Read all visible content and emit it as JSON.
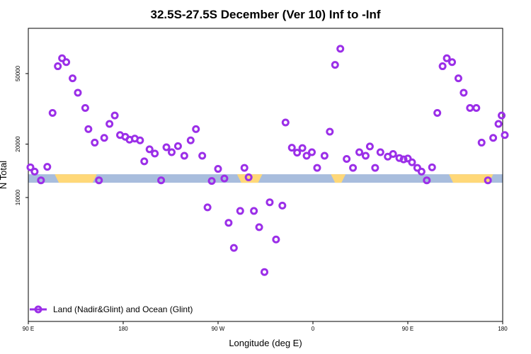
{
  "chart_data": {
    "type": "scatter",
    "title": "32.5S-27.5S December (Ver 10)   Inf to -Inf",
    "xlabel": "Longitude (deg E)",
    "ylabel": "N Total",
    "x_ticks": [
      {
        "value": 90,
        "label": "90 E"
      },
      {
        "value": 180,
        "label": "180"
      },
      {
        "value": 270,
        "label": "90 W"
      },
      {
        "value": 360,
        "label": "0"
      },
      {
        "value": 450,
        "label": "90 E"
      },
      {
        "value": 540,
        "label": "180"
      }
    ],
    "y_ticks": [
      {
        "value": 10000,
        "label": "10000"
      },
      {
        "value": 20000,
        "label": "20000"
      },
      {
        "value": 50000,
        "label": "50000"
      }
    ],
    "xlim": [
      90,
      540
    ],
    "ylim_log": [
      2000,
      90000
    ],
    "colors": {
      "series": "#9b2fe8",
      "ocean_band": "#a8bddd",
      "land_band": "#ffd878"
    },
    "legend": {
      "label": "Land (Nadir&Glint) and Ocean (Glint)",
      "position": "bottom-left"
    },
    "band": {
      "y_value": 12800,
      "land_ranges": [
        [
          115,
          155
        ],
        [
          288,
          312
        ],
        [
          377,
          391
        ],
        [
          489,
          531
        ]
      ]
    },
    "series": [
      {
        "name": "Land (Nadir&Glint) and Ocean (Glint)",
        "points": [
          [
            92,
            14800
          ],
          [
            96,
            14000
          ],
          [
            102,
            12500
          ],
          [
            108,
            14900
          ],
          [
            113,
            30000
          ],
          [
            118,
            55000
          ],
          [
            122,
            61000
          ],
          [
            126,
            58000
          ],
          [
            132,
            47000
          ],
          [
            137,
            39000
          ],
          [
            144,
            32000
          ],
          [
            147,
            24300
          ],
          [
            153,
            20400
          ],
          [
            157,
            12500
          ],
          [
            162,
            21700
          ],
          [
            167,
            26000
          ],
          [
            172,
            29000
          ],
          [
            177,
            22500
          ],
          [
            182,
            22000
          ],
          [
            186,
            21200
          ],
          [
            191,
            21500
          ],
          [
            196,
            21000
          ],
          [
            200,
            16000
          ],
          [
            205,
            18700
          ],
          [
            210,
            17700
          ],
          [
            216,
            12500
          ],
          [
            221,
            19200
          ],
          [
            226,
            18000
          ],
          [
            232,
            19500
          ],
          [
            238,
            17200
          ],
          [
            244,
            21000
          ],
          [
            249,
            24300
          ],
          [
            255,
            17200
          ],
          [
            260,
            8800
          ],
          [
            264,
            12400
          ],
          [
            270,
            14500
          ],
          [
            276,
            12800
          ],
          [
            280,
            7200
          ],
          [
            285,
            5200
          ],
          [
            291,
            8400
          ],
          [
            295,
            14700
          ],
          [
            299,
            13000
          ],
          [
            304,
            8400
          ],
          [
            309,
            6800
          ],
          [
            314,
            3800
          ],
          [
            319,
            9400
          ],
          [
            325,
            5800
          ],
          [
            331,
            9000
          ],
          [
            334,
            26500
          ],
          [
            340,
            19100
          ],
          [
            345,
            17900
          ],
          [
            350,
            19000
          ],
          [
            354,
            17200
          ],
          [
            359,
            18000
          ],
          [
            364,
            14700
          ],
          [
            371,
            17200
          ],
          [
            376,
            23500
          ],
          [
            381,
            56000
          ],
          [
            386,
            69000
          ],
          [
            392,
            16500
          ],
          [
            398,
            14700
          ],
          [
            404,
            18000
          ],
          [
            410,
            17200
          ],
          [
            414,
            19400
          ],
          [
            419,
            14700
          ],
          [
            424,
            18000
          ],
          [
            431,
            17000
          ],
          [
            436,
            17600
          ],
          [
            442,
            16700
          ],
          [
            446,
            16400
          ],
          [
            450,
            16600
          ],
          [
            454,
            15800
          ],
          [
            459,
            14700
          ],
          [
            463,
            14000
          ],
          [
            468,
            12500
          ],
          [
            473,
            14800
          ],
          [
            478,
            30000
          ],
          [
            483,
            55000
          ],
          [
            487,
            61000
          ],
          [
            492,
            58000
          ],
          [
            498,
            47000
          ],
          [
            503,
            39000
          ],
          [
            509,
            32000
          ],
          [
            515,
            32000
          ],
          [
            520,
            20400
          ],
          [
            526,
            12500
          ],
          [
            531,
            21700
          ],
          [
            536,
            26000
          ],
          [
            539,
            29000
          ],
          [
            542,
            22500
          ]
        ]
      }
    ]
  }
}
